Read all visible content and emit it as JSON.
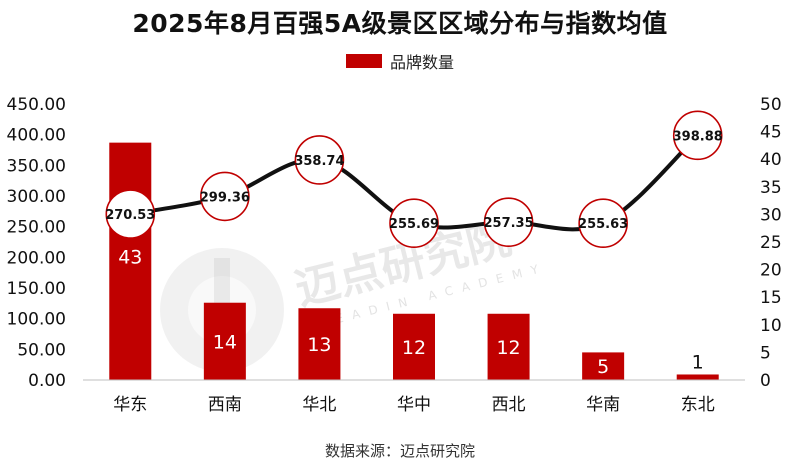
{
  "chart_data": {
    "type": "bar",
    "title": "2025年8月百强5A级景区区域分布与指数均值",
    "categories": [
      "华东",
      "西南",
      "华北",
      "华中",
      "西北",
      "华南",
      "东北"
    ],
    "series": [
      {
        "name": "品牌数量",
        "kind": "bar",
        "axis": "right",
        "values": [
          43,
          14,
          13,
          12,
          12,
          5,
          1
        ]
      },
      {
        "name": "",
        "kind": "line",
        "axis": "left",
        "values": [
          270.53,
          299.36,
          358.74,
          255.69,
          257.35,
          255.63,
          398.88
        ]
      }
    ],
    "y_left": {
      "min": 0,
      "max": 450,
      "ticks": [
        "0.00",
        "50.00",
        "100.00",
        "150.00",
        "200.00",
        "250.00",
        "300.00",
        "350.00",
        "400.00",
        "450.00"
      ]
    },
    "y_right": {
      "min": 0,
      "max": 50,
      "ticks": [
        "0",
        "5",
        "10",
        "15",
        "20",
        "25",
        "30",
        "35",
        "40",
        "45",
        "50"
      ]
    },
    "legend": {
      "label": "品牌数量",
      "placement": "top"
    },
    "grid": false,
    "colors": {
      "bar": "#c00000",
      "line": "#111111",
      "marker_stroke": "#c00000",
      "marker_fill": "#ffffff"
    }
  },
  "watermark": {
    "text": "迈点研究院",
    "subtext": "MEADIN ACADEMY"
  },
  "source": "数据来源：迈点研究院"
}
